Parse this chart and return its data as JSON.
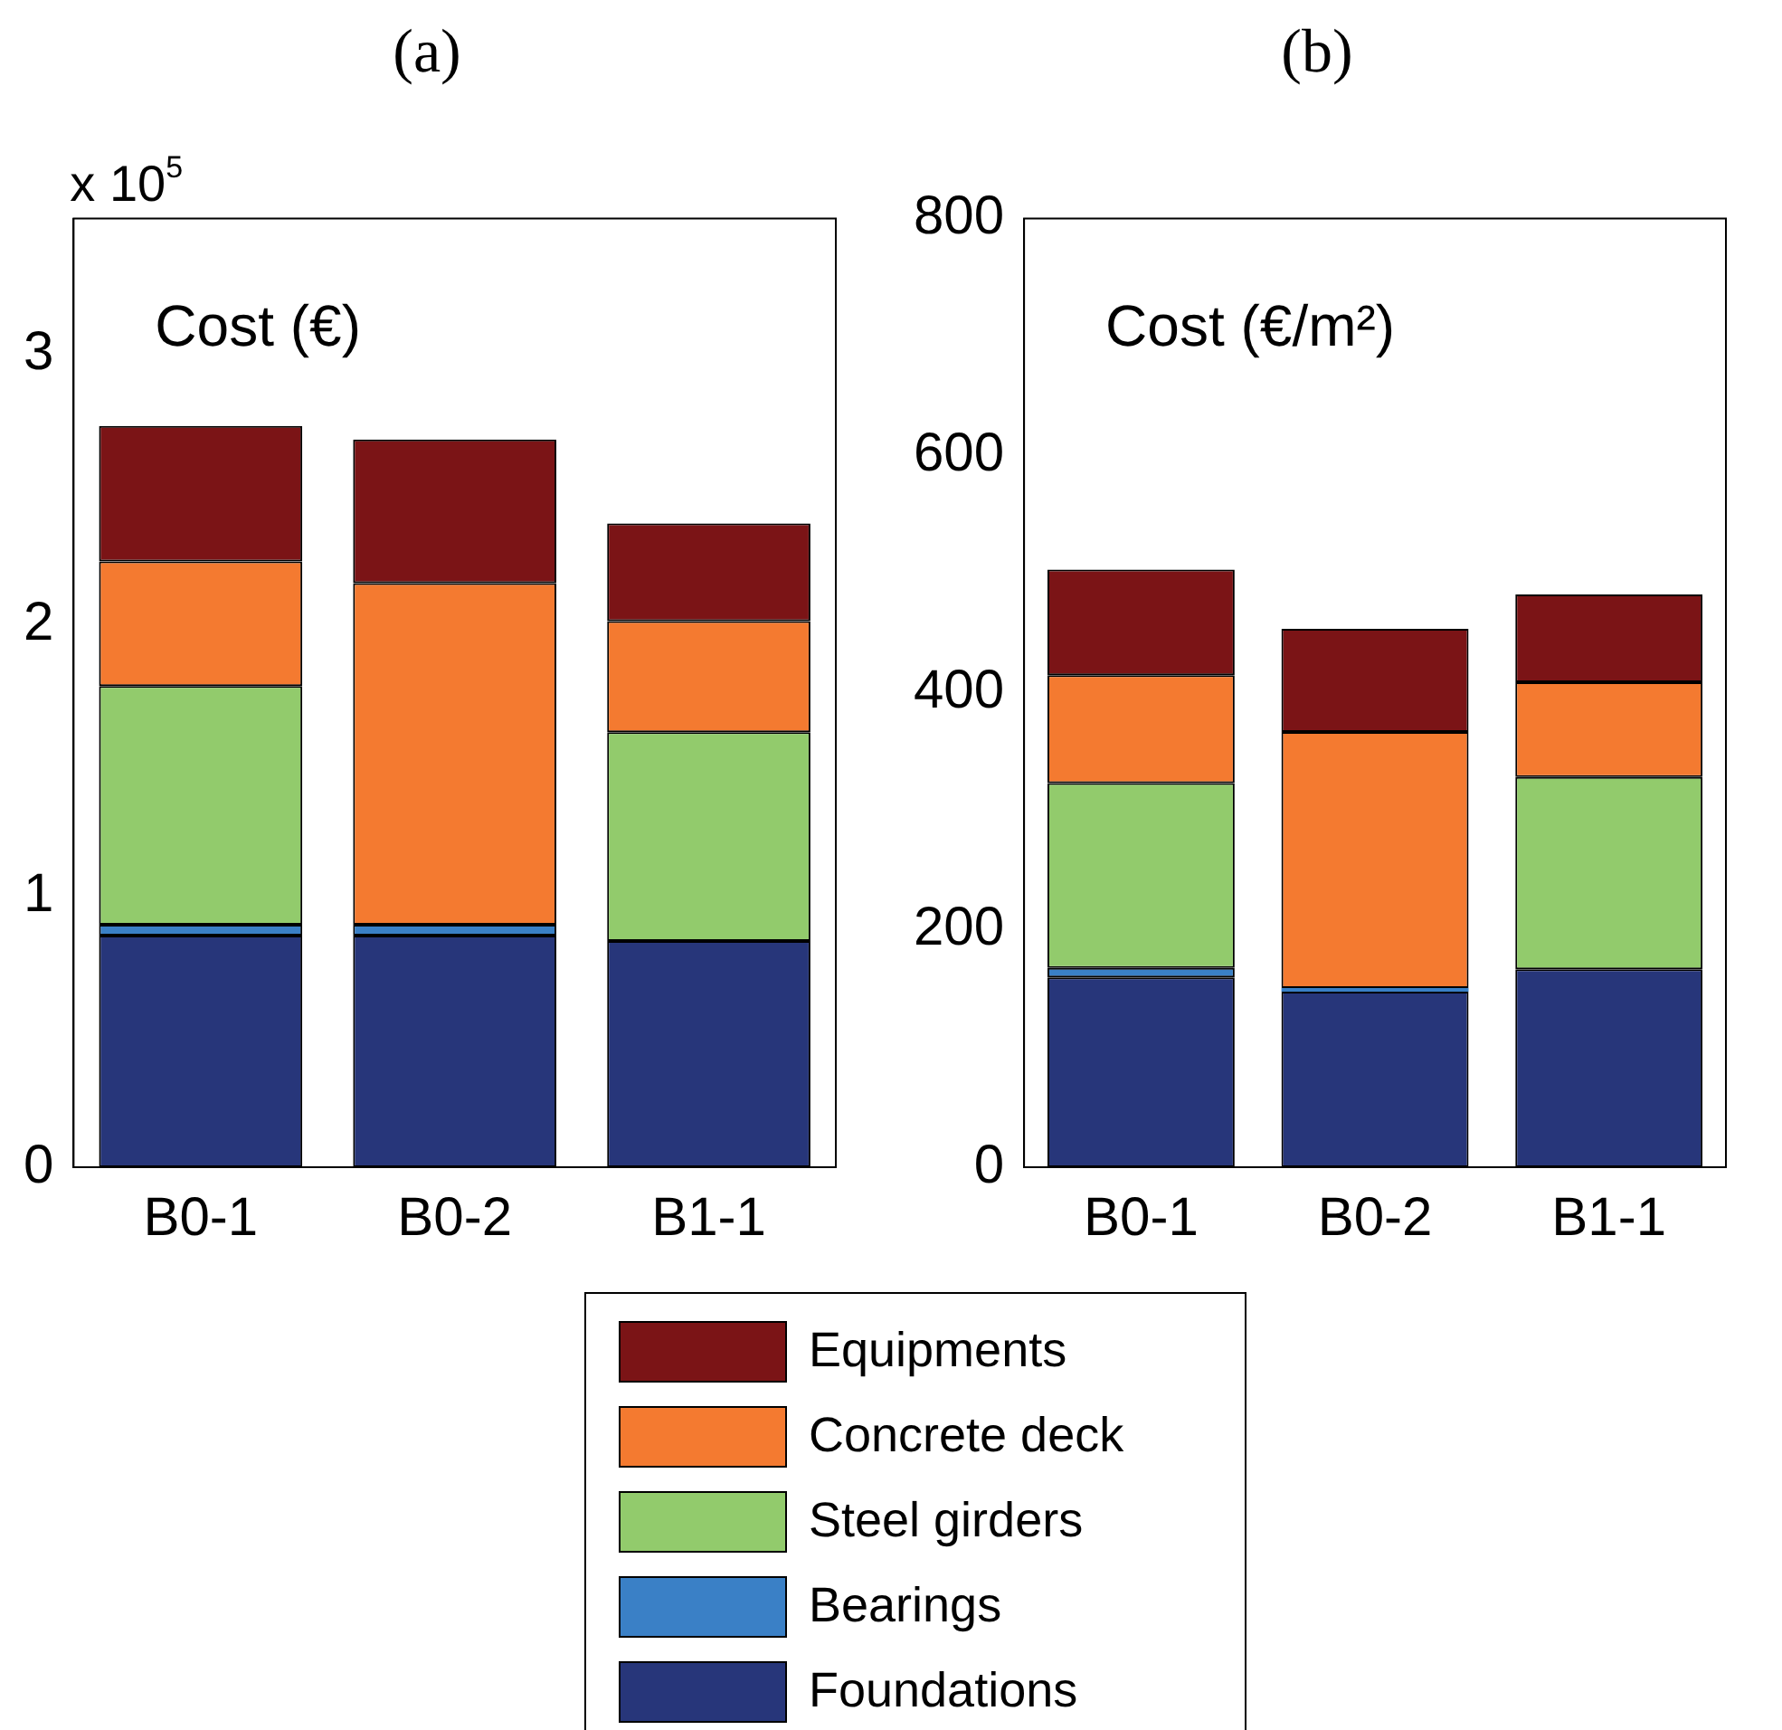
{
  "chart_data": [
    {
      "type": "bar",
      "title": "(a)",
      "ylabel": "x 10$^{5}$",
      "annotations": [
        "Cost (€)"
      ],
      "categories": [
        "B0-1",
        "B0-2",
        "B1-1"
      ],
      "stacked": true,
      "ylim": [
        0,
        3.5
      ],
      "yticks": [
        0,
        1,
        2,
        3
      ],
      "grid": false,
      "legend": "bottom",
      "series": [
        {
          "name": "Foundations",
          "color": "#27367a",
          "values": [
            0.855,
            0.855,
            0.835
          ]
        },
        {
          "name": "Bearings",
          "color": "#3a80c6",
          "values": [
            0.04,
            0.04,
            null
          ]
        },
        {
          "name": "Steel girders",
          "color": "#92cb6c",
          "values": [
            0.88,
            0,
            0.77
          ]
        },
        {
          "name": "Concrete deck",
          "color": "#f47a30",
          "values": [
            0.46,
            1.26,
            0.41
          ]
        },
        {
          "name": "Equipments",
          "color": "#7b1416",
          "values": [
            0.5,
            0.53,
            0.36
          ]
        }
      ]
    },
    {
      "type": "bar",
      "title": "(b)",
      "annotations": [
        "Cost (€/m²)"
      ],
      "categories": [
        "B0-1",
        "B0-2",
        "B1-1"
      ],
      "stacked": true,
      "ylim": [
        0,
        800
      ],
      "yticks": [
        0,
        200,
        400,
        600,
        800
      ],
      "grid": false,
      "series": [
        {
          "color": "#27367a",
          "values": [
            160,
            148,
            167
          ]
        },
        {
          "color": "#3a80c6",
          "values": [
            8,
            3,
            null
          ]
        },
        {
          "color": "#92cb6c",
          "values": [
            156,
            0,
            162
          ]
        },
        {
          "color": "#f47a30",
          "values": [
            91,
            216,
            80
          ]
        },
        {
          "color": "#7b1416",
          "values": [
            89,
            87,
            74
          ]
        }
      ]
    }
  ]
}
